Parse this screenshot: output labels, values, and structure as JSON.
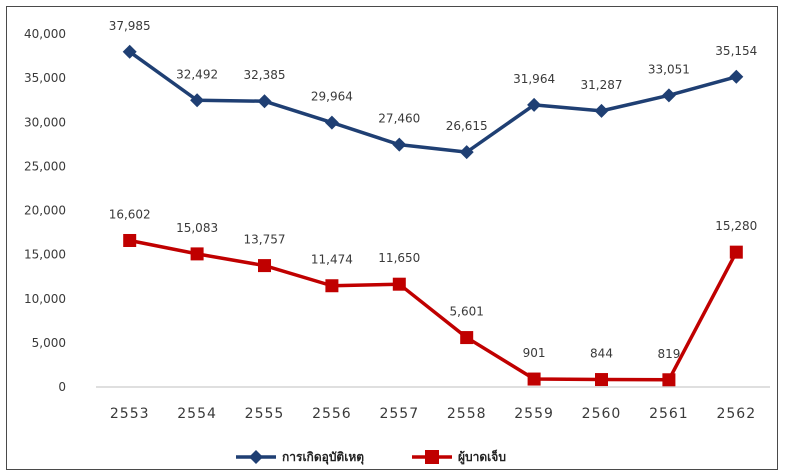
{
  "chart_data": {
    "type": "line",
    "categories": [
      "2553",
      "2554",
      "2555",
      "2556",
      "2557",
      "2558",
      "2559",
      "2560",
      "2561",
      "2562"
    ],
    "series": [
      {
        "name": "การเกิดอุบัติเหตุ",
        "color": "#1f3f73",
        "marker": "diamond",
        "values": [
          37985,
          32492,
          32385,
          29964,
          27460,
          26615,
          31964,
          31287,
          33051,
          35154
        ],
        "labels": [
          "37,985",
          "32,492",
          "32,385",
          "29,964",
          "27,460",
          "26,615",
          "31,964",
          "31,287",
          "33,051",
          "35,154"
        ]
      },
      {
        "name": "ผู้บาดเจ็บ",
        "color": "#c00000",
        "marker": "square",
        "values": [
          16602,
          15083,
          13757,
          11474,
          11650,
          5601,
          901,
          844,
          819,
          15280
        ],
        "labels": [
          "16,602",
          "15,083",
          "13,757",
          "11,474",
          "11,650",
          "5,601",
          "901",
          "844",
          "819",
          "15,280"
        ]
      }
    ],
    "ylim": [
      0,
      40000
    ],
    "yticks": [
      0,
      5000,
      10000,
      15000,
      20000,
      25000,
      30000,
      35000,
      40000
    ],
    "ytick_labels": [
      "0",
      "5,000",
      "10,000",
      "15,000",
      "20,000",
      "25,000",
      "30,000",
      "35,000",
      "40,000"
    ],
    "grid": false,
    "legend_position": "bottom"
  }
}
